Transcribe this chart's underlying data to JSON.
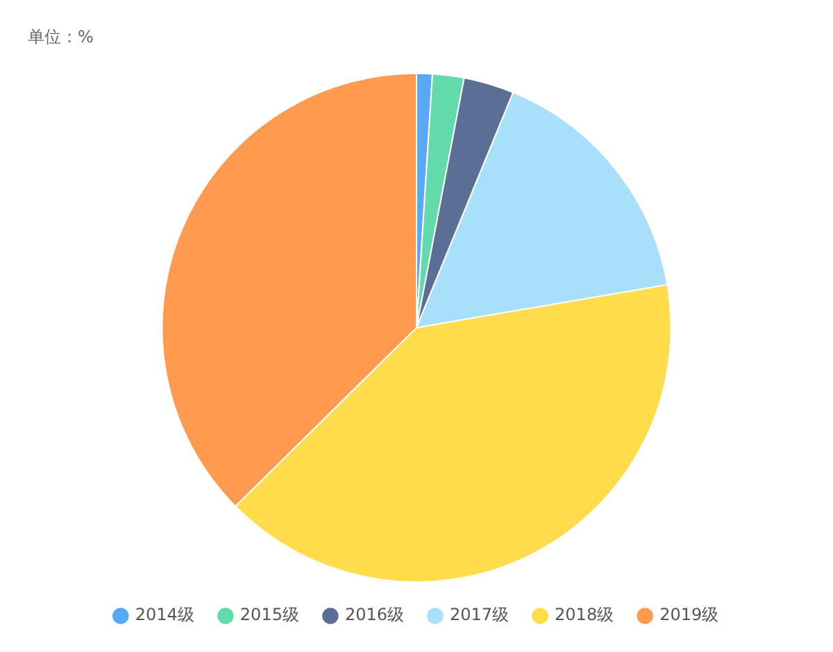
{
  "chart_data": {
    "type": "pie",
    "title": "单位：%",
    "categories": [
      "2014级",
      "2015级",
      "2016级",
      "2017级",
      "2018级",
      "2019级"
    ],
    "values": [
      1,
      2,
      3.2,
      16.1,
      40.3,
      37.4
    ],
    "colors": [
      "#58a9f5",
      "#62daab",
      "#5b6e96",
      "#a8dffa",
      "#ffdc4c",
      "#ff9a4f"
    ],
    "legend": "bottom"
  }
}
